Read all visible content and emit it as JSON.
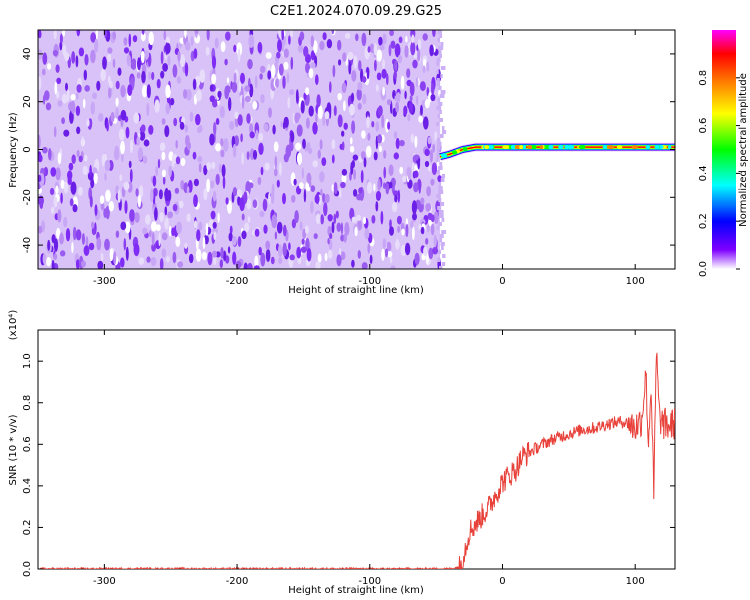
{
  "title": "C2E1.2024.070.09.29.G25",
  "colors": {
    "signal": "#e8413a",
    "frame": "#000000",
    "noise": "#7a1ef2"
  },
  "chart_data": [
    {
      "type": "heatmap",
      "xlabel": "Height of straight line (km)",
      "ylabel": "Frequency (Hz)",
      "xlim": [
        -350,
        130
      ],
      "ylim": [
        -50,
        50
      ],
      "xticks": [
        -300,
        -200,
        -100,
        0,
        100
      ],
      "yticks": [
        -40,
        -20,
        0,
        20,
        40
      ],
      "colorbar": {
        "label": "Normalized spectral amplitude",
        "range": [
          0,
          1
        ],
        "ticks": [
          "0.0",
          "0.2",
          "0.4",
          "0.6",
          "0.8"
        ],
        "colormap": [
          "#ffffff",
          "#7f00ff",
          "#0000ff",
          "#00ffff",
          "#00ff00",
          "#ffff00",
          "#ff7f00",
          "#ff0000",
          "#ff00ff"
        ]
      },
      "noise_region": {
        "x": [
          -350,
          -47
        ],
        "y": [
          -50,
          50
        ],
        "amplitude": [
          0.0,
          0.15
        ]
      },
      "signal_track": {
        "x": [
          -47,
          -40,
          -30,
          -20,
          -10,
          0,
          10,
          30,
          60,
          90,
          110,
          130
        ],
        "frequency": [
          -3,
          -2,
          0,
          1,
          1,
          1,
          1,
          1,
          1,
          1,
          1,
          1
        ],
        "amplitude": [
          0.35,
          0.45,
          0.6,
          0.7,
          0.75,
          0.8,
          0.85,
          0.85,
          0.85,
          0.85,
          0.85,
          0.85
        ]
      }
    },
    {
      "type": "line",
      "xlabel": "Height of straight line (km)",
      "ylabel": "SNR (10 * v/v)",
      "exponent_label": "(x10⁴)",
      "xlim": [
        -350,
        130
      ],
      "ylim": [
        0,
        1.15
      ],
      "xticks": [
        -300,
        -200,
        -100,
        0,
        100
      ],
      "yticks": [
        "0.0",
        "0.2",
        "0.4",
        "0.6",
        "0.8",
        "1.0"
      ],
      "series": [
        {
          "x": [
            -350,
            -300,
            -250,
            -200,
            -150,
            -100,
            -60,
            -40,
            -32,
            -28,
            -25,
            -20,
            -15,
            -10,
            -5,
            0,
            5,
            10,
            15,
            20,
            30,
            40,
            50,
            60,
            70,
            80,
            90,
            95,
            100,
            105,
            108,
            110,
            112,
            114,
            116,
            118,
            120,
            125,
            130
          ],
          "y": [
            0.0,
            0.0,
            0.0,
            0.0,
            0.0,
            0.0,
            0.0,
            0.0,
            0.01,
            0.1,
            0.18,
            0.22,
            0.26,
            0.3,
            0.36,
            0.42,
            0.45,
            0.48,
            0.54,
            0.56,
            0.6,
            0.63,
            0.65,
            0.67,
            0.68,
            0.7,
            0.71,
            0.7,
            0.68,
            0.72,
            0.95,
            0.6,
            0.9,
            0.35,
            1.05,
            0.75,
            0.7,
            0.69,
            0.7
          ]
        }
      ]
    }
  ]
}
